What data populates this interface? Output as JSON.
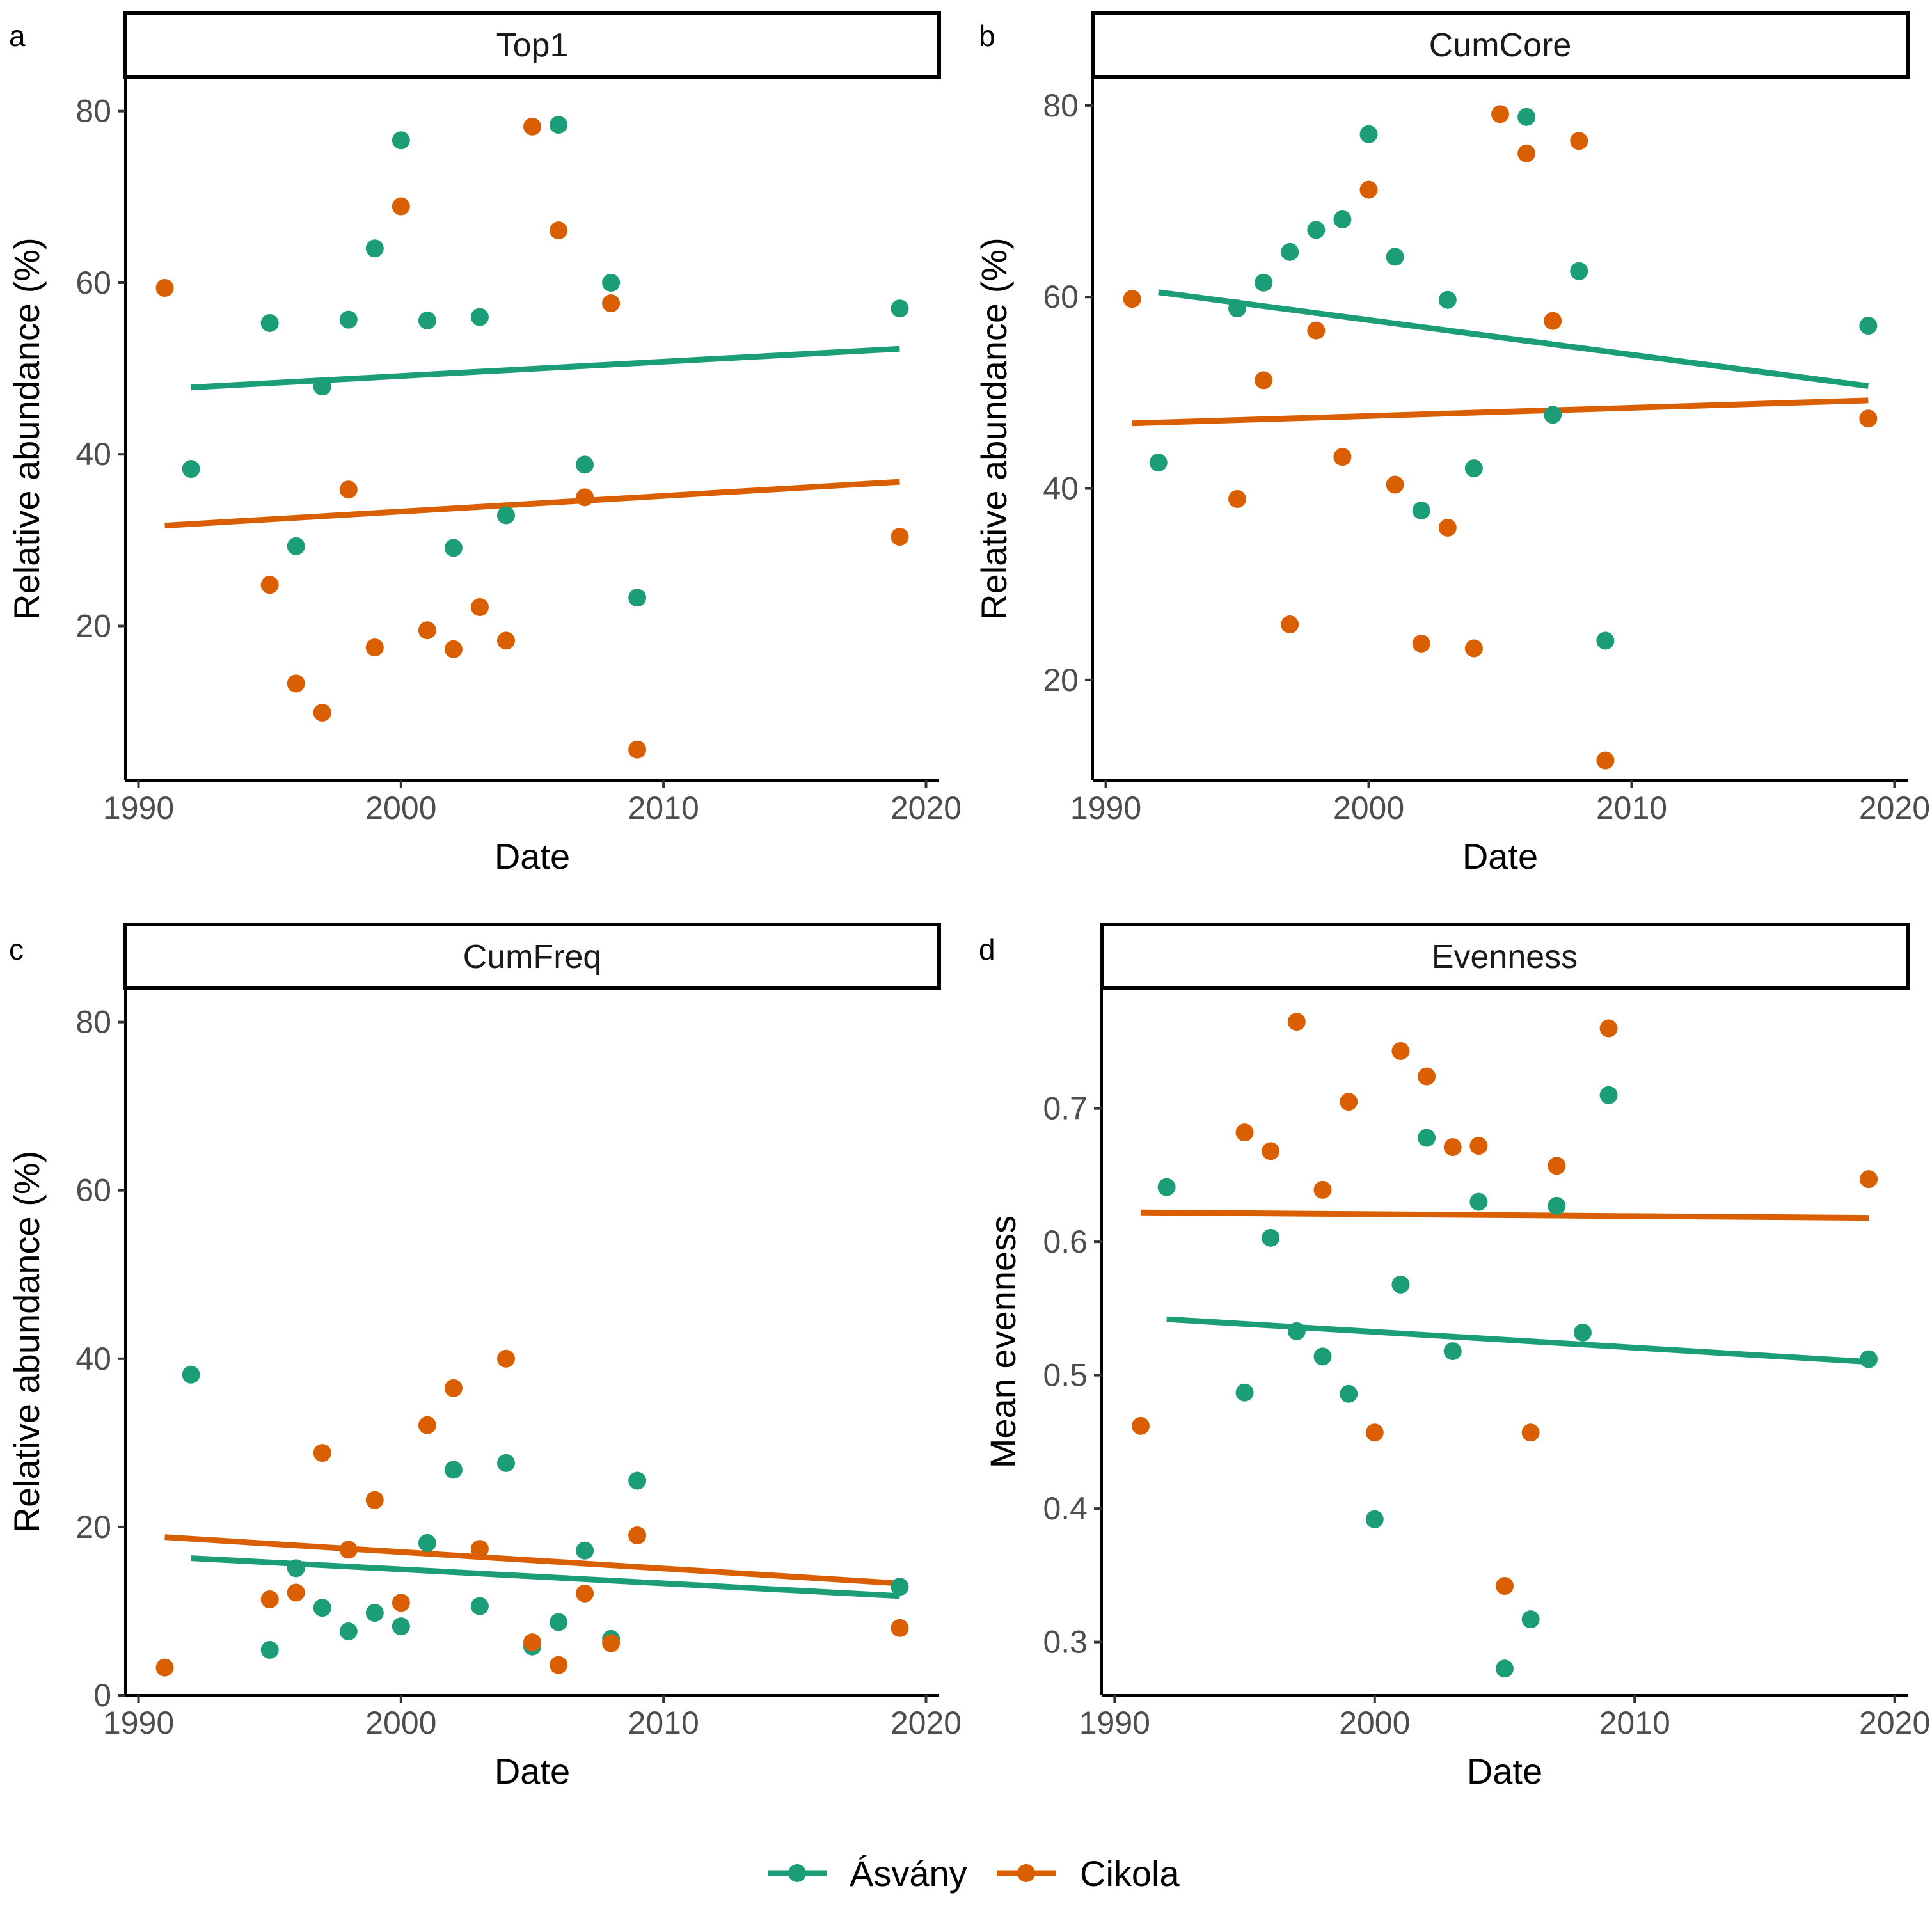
{
  "colors": {
    "asvany": "#1b9e77",
    "cikola": "#d95f02"
  },
  "legend": {
    "items": [
      {
        "label": "Ásvány",
        "color": "#1b9e77"
      },
      {
        "label": "Cikola",
        "color": "#d95f02"
      }
    ]
  },
  "chart_data": [
    {
      "letter": "a",
      "title": "Top1",
      "type": "scatter",
      "xlabel": "Date",
      "ylabel": "Relative abundance (%)",
      "xlim": [
        1989.5,
        2020.5
      ],
      "ylim": [
        2,
        84
      ],
      "xticks": [
        1990,
        2000,
        2010,
        2020
      ],
      "yticks": [
        20,
        40,
        60,
        80
      ],
      "series": [
        {
          "name": "Ásvány",
          "color": "#1b9e77",
          "points": [
            [
              1992,
              38.3
            ],
            [
              1995,
              55.3
            ],
            [
              1996,
              29.3
            ],
            [
              1997,
              47.9
            ],
            [
              1998,
              55.7
            ],
            [
              1999,
              64
            ],
            [
              2000,
              76.6
            ],
            [
              2001,
              55.6
            ],
            [
              2002,
              29.1
            ],
            [
              2003,
              56
            ],
            [
              2004,
              32.9
            ],
            [
              2006,
              78.4
            ],
            [
              2007,
              38.8
            ],
            [
              2008,
              60
            ],
            [
              2009,
              23.3
            ],
            [
              2019,
              57
            ]
          ],
          "trend": [
            [
              1992,
              47.8
            ],
            [
              2019,
              52.3
            ]
          ]
        },
        {
          "name": "Cikola",
          "color": "#d95f02",
          "points": [
            [
              1991,
              59.4
            ],
            [
              1995,
              24.8
            ],
            [
              1996,
              13.3
            ],
            [
              1997,
              9.9
            ],
            [
              1998,
              35.9
            ],
            [
              1999,
              17.5
            ],
            [
              2000,
              68.9
            ],
            [
              2001,
              19.5
            ],
            [
              2002,
              17.3
            ],
            [
              2003,
              22.2
            ],
            [
              2004,
              18.3
            ],
            [
              2005,
              78.2
            ],
            [
              2006,
              66.1
            ],
            [
              2007,
              35
            ],
            [
              2008,
              57.6
            ],
            [
              2009,
              5.6
            ],
            [
              2019,
              30.4
            ]
          ],
          "trend": [
            [
              1991,
              31.7
            ],
            [
              2019,
              36.8
            ]
          ]
        }
      ]
    },
    {
      "letter": "b",
      "title": "CumCore",
      "type": "scatter",
      "xlabel": "Date",
      "ylabel": "Relative abundance (%)",
      "xlim": [
        1989.5,
        2020.5
      ],
      "ylim": [
        9.5,
        83
      ],
      "xticks": [
        1990,
        2000,
        2010,
        2020
      ],
      "yticks": [
        20,
        40,
        60,
        80
      ],
      "series": [
        {
          "name": "Ásvány",
          "color": "#1b9e77",
          "points": [
            [
              1992,
              42.7
            ],
            [
              1995,
              58.8
            ],
            [
              1996,
              61.5
            ],
            [
              1997,
              64.7
            ],
            [
              1998,
              67
            ],
            [
              1999,
              68.1
            ],
            [
              2000,
              77
            ],
            [
              2001,
              64.2
            ],
            [
              2002,
              37.7
            ],
            [
              2003,
              59.7
            ],
            [
              2004,
              42.1
            ],
            [
              2006,
              78.8
            ],
            [
              2007,
              47.7
            ],
            [
              2008,
              62.7
            ],
            [
              2009,
              24.1
            ],
            [
              2019,
              57
            ]
          ],
          "trend": [
            [
              1992,
              60.5
            ],
            [
              2019,
              50.7
            ]
          ]
        },
        {
          "name": "Cikola",
          "color": "#d95f02",
          "points": [
            [
              1991,
              59.8
            ],
            [
              1995,
              38.9
            ],
            [
              1996,
              51.3
            ],
            [
              1997,
              25.8
            ],
            [
              1998,
              56.5
            ],
            [
              1999,
              43.3
            ],
            [
              2000,
              71.2
            ],
            [
              2001,
              40.4
            ],
            [
              2002,
              23.8
            ],
            [
              2003,
              35.9
            ],
            [
              2004,
              23.3
            ],
            [
              2005,
              79.1
            ],
            [
              2006,
              75
            ],
            [
              2007,
              57.5
            ],
            [
              2008,
              76.3
            ],
            [
              2009,
              11.6
            ],
            [
              2019,
              47.3
            ]
          ],
          "trend": [
            [
              1991,
              46.8
            ],
            [
              2019,
              49.2
            ]
          ]
        }
      ]
    },
    {
      "letter": "c",
      "title": "CumFreq",
      "type": "scatter",
      "xlabel": "Date",
      "ylabel": "Relative abundance (%)",
      "xlim": [
        1989.5,
        2020.5
      ],
      "ylim": [
        0,
        84
      ],
      "xticks": [
        1990,
        2000,
        2010,
        2020
      ],
      "yticks": [
        0,
        20,
        40,
        60,
        80
      ],
      "series": [
        {
          "name": "Ásvány",
          "color": "#1b9e77",
          "points": [
            [
              1992,
              38.1
            ],
            [
              1995,
              5.4
            ],
            [
              1996,
              15.1
            ],
            [
              1997,
              10.4
            ],
            [
              1998,
              7.6
            ],
            [
              1999,
              9.8
            ],
            [
              2000,
              8.2
            ],
            [
              2001,
              18.1
            ],
            [
              2002,
              26.8
            ],
            [
              2003,
              10.6
            ],
            [
              2004,
              27.6
            ],
            [
              2005,
              5.8
            ],
            [
              2006,
              8.7
            ],
            [
              2007,
              17.2
            ],
            [
              2008,
              6.7
            ],
            [
              2009,
              25.5
            ],
            [
              2019,
              12.9
            ]
          ],
          "trend": [
            [
              1992,
              16.3
            ],
            [
              2019,
              11.8
            ]
          ]
        },
        {
          "name": "Cikola",
          "color": "#d95f02",
          "points": [
            [
              1991,
              3.3
            ],
            [
              1995,
              11.4
            ],
            [
              1996,
              12.2
            ],
            [
              1997,
              28.8
            ],
            [
              1998,
              17.3
            ],
            [
              1999,
              23.2
            ],
            [
              2000,
              11
            ],
            [
              2001,
              32.1
            ],
            [
              2002,
              36.5
            ],
            [
              2003,
              17.4
            ],
            [
              2004,
              40
            ],
            [
              2005,
              6.3
            ],
            [
              2006,
              3.6
            ],
            [
              2007,
              12.1
            ],
            [
              2008,
              6.2
            ],
            [
              2009,
              19
            ],
            [
              2019,
              8
            ]
          ],
          "trend": [
            [
              1991,
              18.8
            ],
            [
              2019,
              13.3
            ]
          ]
        }
      ]
    },
    {
      "letter": "d",
      "title": "Evenness",
      "type": "scatter",
      "xlabel": "Date",
      "ylabel": "Mean evenness",
      "xlim": [
        1989.5,
        2020.5
      ],
      "ylim": [
        0.26,
        0.79
      ],
      "xticks": [
        1990,
        2000,
        2010,
        2020
      ],
      "yticks": [
        0.3,
        0.4,
        0.5,
        0.6,
        0.7
      ],
      "series": [
        {
          "name": "Ásvány",
          "color": "#1b9e77",
          "points": [
            [
              1992,
              0.641
            ],
            [
              1995,
              0.487
            ],
            [
              1996,
              0.603
            ],
            [
              1997,
              0.533
            ],
            [
              1998,
              0.514
            ],
            [
              1999,
              0.486
            ],
            [
              2000,
              0.392
            ],
            [
              2001,
              0.568
            ],
            [
              2002,
              0.678
            ],
            [
              2003,
              0.518
            ],
            [
              2004,
              0.63
            ],
            [
              2005,
              0.28
            ],
            [
              2006,
              0.317
            ],
            [
              2007,
              0.627
            ],
            [
              2008,
              0.532
            ],
            [
              2009,
              0.71
            ],
            [
              2019,
              0.512
            ]
          ],
          "trend": [
            [
              1992,
              0.542
            ],
            [
              2019,
              0.51
            ]
          ]
        },
        {
          "name": "Cikola",
          "color": "#d95f02",
          "points": [
            [
              1991,
              0.462
            ],
            [
              1995,
              0.682
            ],
            [
              1996,
              0.668
            ],
            [
              1997,
              0.765
            ],
            [
              1998,
              0.639
            ],
            [
              1999,
              0.705
            ],
            [
              2000,
              0.457
            ],
            [
              2001,
              0.743
            ],
            [
              2002,
              0.724
            ],
            [
              2003,
              0.671
            ],
            [
              2004,
              0.672
            ],
            [
              2005,
              0.342
            ],
            [
              2006,
              0.457
            ],
            [
              2007,
              0.657
            ],
            [
              2009,
              0.76
            ],
            [
              2019,
              0.647
            ]
          ],
          "trend": [
            [
              1991,
              0.622
            ],
            [
              2019,
              0.618
            ]
          ]
        }
      ]
    }
  ]
}
